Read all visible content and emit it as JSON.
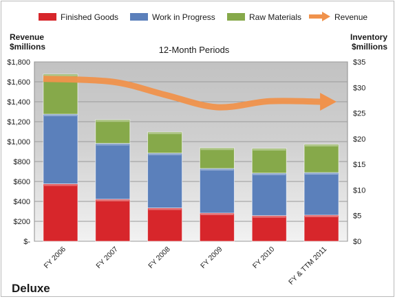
{
  "legend": [
    {
      "name": "Finished Goods",
      "color": "#d7262b"
    },
    {
      "name": "Work in Progress",
      "color": "#5b80bb"
    },
    {
      "name": "Raw Materials",
      "color": "#86a94a"
    },
    {
      "name": "Revenue",
      "color": "#f0924c"
    }
  ],
  "company": "Deluxe",
  "chart_data": {
    "type": "bar",
    "stacked": true,
    "title": "12-Month Periods",
    "ylabel_left": [
      "Revenue",
      "$millions"
    ],
    "ylabel_right": [
      "Inventory",
      "$millions"
    ],
    "categories": [
      "FY 2006",
      "FY 2007",
      "FY 2008",
      "FY 2009",
      "FY 2010",
      "FY & TTM 2011"
    ],
    "left_axis": {
      "min": 0,
      "max": 1800,
      "step": 200,
      "tick_labels": [
        "$-",
        "$200",
        "$400",
        "$600",
        "$800",
        "$1,000",
        "$1,200",
        "$1,400",
        "$1,600",
        "$1,800"
      ]
    },
    "right_axis": {
      "min": 0,
      "max": 35,
      "step": 5,
      "tick_labels": [
        "$0",
        "$5",
        "$10",
        "$15",
        "$20",
        "$25",
        "$30",
        "$35"
      ]
    },
    "series": [
      {
        "name": "Finished Goods",
        "axis": "right",
        "values": [
          11.2,
          8.2,
          6.5,
          5.5,
          5.0,
          5.1
        ]
      },
      {
        "name": "Work in Progress",
        "axis": "right",
        "values": [
          13.6,
          10.9,
          10.7,
          8.7,
          8.3,
          8.3
        ]
      },
      {
        "name": "Raw Materials",
        "axis": "right",
        "values": [
          7.8,
          4.6,
          4.1,
          4.0,
          4.8,
          5.5
        ]
      },
      {
        "name": "Revenue",
        "type": "line",
        "axis": "left",
        "values": [
          1630,
          1600,
          1470,
          1345,
          1405,
          1400
        ]
      }
    ],
    "grid": true,
    "legend_position": "top"
  }
}
